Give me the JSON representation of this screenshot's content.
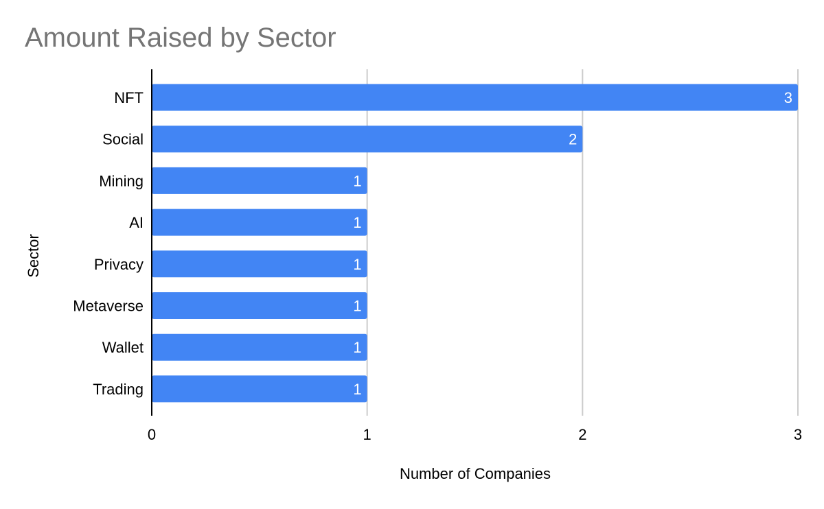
{
  "chart_data": {
    "type": "bar",
    "orientation": "horizontal",
    "title": "Amount Raised by Sector",
    "xlabel": "Number of Companies",
    "ylabel": "Sector",
    "categories": [
      "NFT",
      "Social",
      "Mining",
      "AI",
      "Privacy",
      "Metaverse",
      "Wallet",
      "Trading"
    ],
    "values": [
      3,
      2,
      1,
      1,
      1,
      1,
      1,
      1
    ],
    "data_labels": [
      "3",
      "2",
      "1",
      "1",
      "1",
      "1",
      "1",
      "1"
    ],
    "xlim": [
      0,
      3
    ],
    "x_ticks": [
      "0",
      "1",
      "2",
      "3"
    ],
    "grid": true,
    "legend": "none",
    "bar_color": "#4285f4",
    "title_color": "#757575",
    "grid_color": "#cccccc"
  }
}
